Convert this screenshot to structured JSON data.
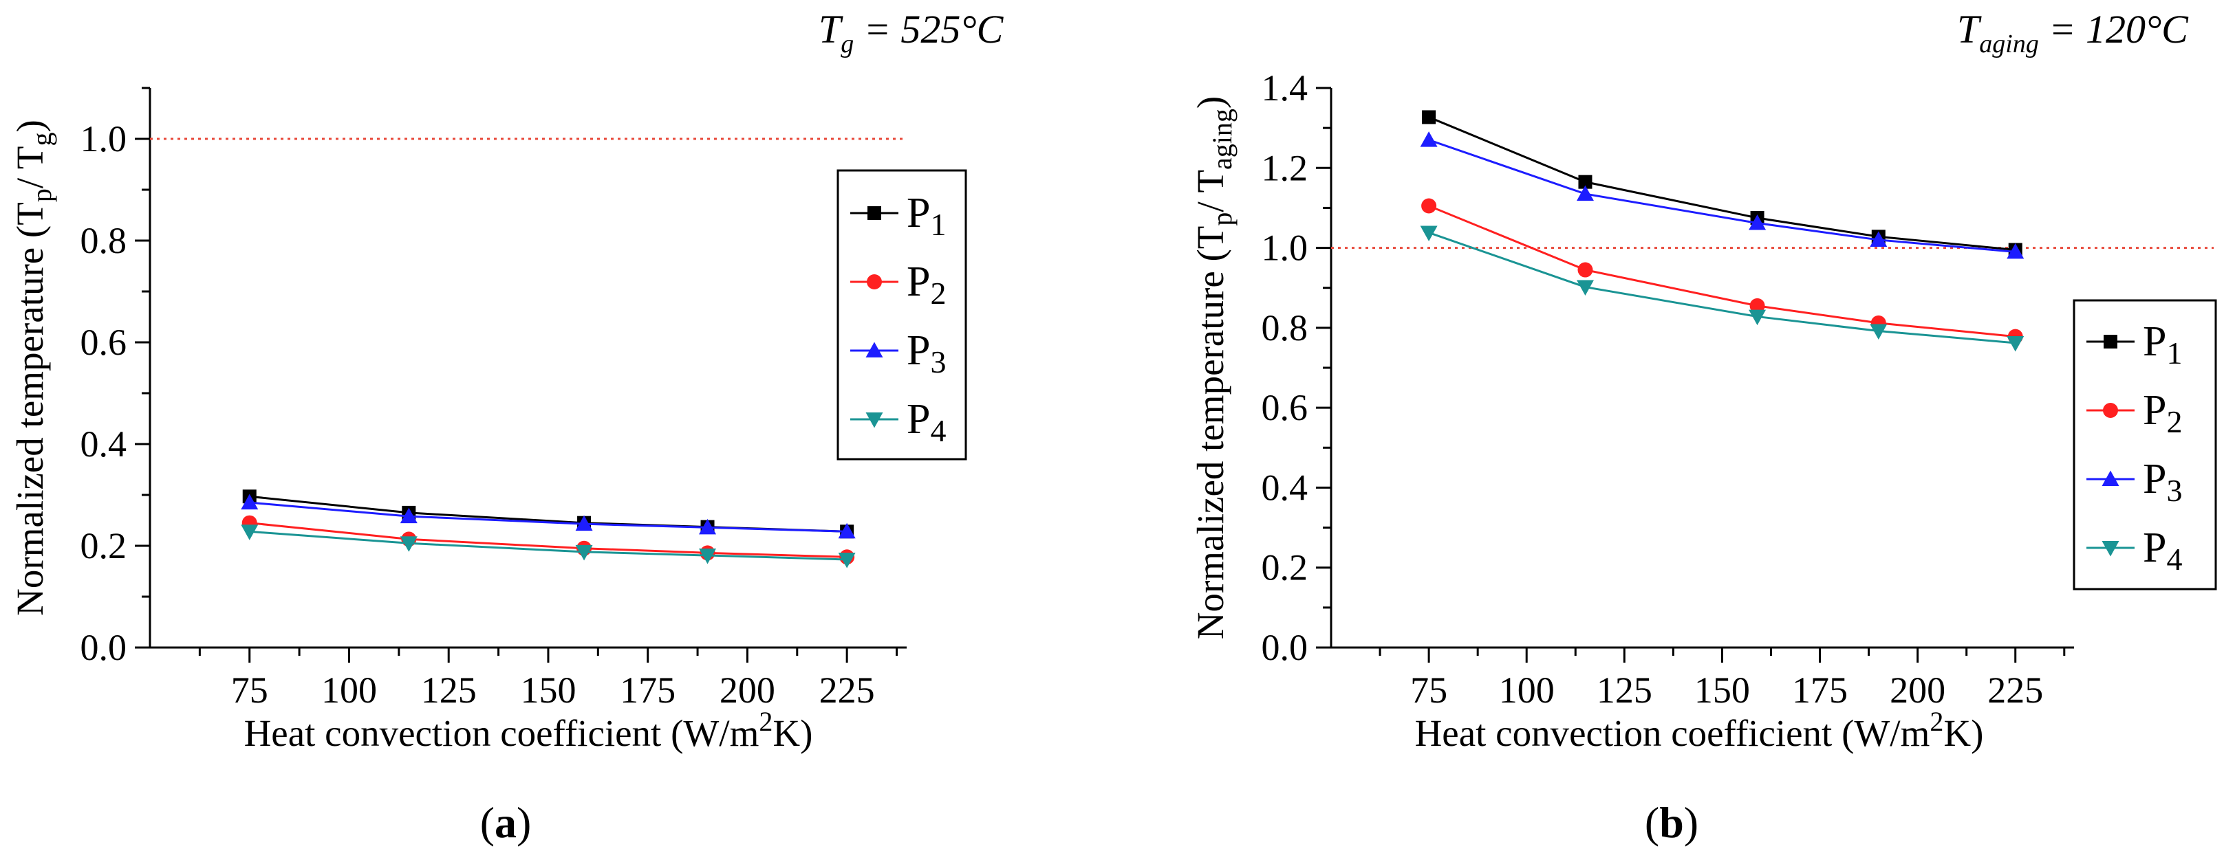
{
  "chart_data": [
    {
      "type": "line",
      "panel_label": "a",
      "title": "",
      "annotation": {
        "symbol": "T",
        "subscript": "g",
        "text": " = 525°C"
      },
      "xlabel": "Heat convection coefficient (W/m",
      "xlabel_sup": "2",
      "xlabel_end": "K)",
      "ylabel": "Normalized temperature (T",
      "ylabel_sub1": "p",
      "ylabel_mid": "/ T",
      "ylabel_sub2": "g",
      "ylabel_end": ")",
      "xlim": [
        50,
        240
      ],
      "ylim": [
        0.0,
        1.1
      ],
      "xticks": [
        75,
        100,
        125,
        150,
        175,
        200,
        225
      ],
      "yticks": [
        0.0,
        0.2,
        0.4,
        0.6,
        0.8,
        1.0
      ],
      "ytick_labels": [
        "0.0",
        "0.2",
        "0.4",
        "0.6",
        "0.8",
        "1.0"
      ],
      "reference_line": {
        "y": 1.0,
        "color": "#e8483a",
        "style": "dotted"
      },
      "x": [
        75,
        115,
        159,
        190,
        225
      ],
      "series": [
        {
          "name": "P",
          "sub": "1",
          "marker": "square",
          "color": "#000000",
          "values": [
            0.297,
            0.265,
            0.245,
            0.237,
            0.228
          ]
        },
        {
          "name": "P",
          "sub": "2",
          "marker": "circle",
          "color": "#ff2020",
          "values": [
            0.245,
            0.213,
            0.195,
            0.186,
            0.178
          ]
        },
        {
          "name": "P",
          "sub": "3",
          "marker": "triangle-up",
          "color": "#1d1dff",
          "values": [
            0.285,
            0.258,
            0.243,
            0.236,
            0.228
          ]
        },
        {
          "name": "P",
          "sub": "4",
          "marker": "triangle-down",
          "color": "#1a9494",
          "values": [
            0.228,
            0.205,
            0.188,
            0.181,
            0.173
          ]
        }
      ]
    },
    {
      "type": "line",
      "panel_label": "b",
      "title": "",
      "annotation": {
        "symbol": "T",
        "subscript": "aging",
        "text": " = 120°C"
      },
      "xlabel": "Heat convection coefficient (W/m",
      "xlabel_sup": "2",
      "xlabel_end": "K)",
      "ylabel": "Normalized temperature (T",
      "ylabel_sub1": "p",
      "ylabel_mid": "/ T",
      "ylabel_sub2": "aging",
      "ylabel_end": ")",
      "xlim": [
        50,
        240
      ],
      "ylim": [
        0.0,
        1.4
      ],
      "xticks": [
        75,
        100,
        125,
        150,
        175,
        200,
        225
      ],
      "yticks": [
        0.0,
        0.2,
        0.4,
        0.6,
        0.8,
        1.0,
        1.2,
        1.4
      ],
      "ytick_labels": [
        "0.0",
        "0.2",
        "0.4",
        "0.6",
        "0.8",
        "1.0",
        "1.2",
        "1.4"
      ],
      "reference_line": {
        "y": 1.0,
        "color": "#e8483a",
        "style": "dotted"
      },
      "x": [
        75,
        115,
        159,
        190,
        225
      ],
      "series": [
        {
          "name": "P",
          "sub": "1",
          "marker": "square",
          "color": "#000000",
          "values": [
            1.327,
            1.165,
            1.075,
            1.028,
            0.995
          ]
        },
        {
          "name": "P",
          "sub": "2",
          "marker": "circle",
          "color": "#ff2020",
          "values": [
            1.105,
            0.945,
            0.855,
            0.812,
            0.778
          ]
        },
        {
          "name": "P",
          "sub": "3",
          "marker": "triangle-up",
          "color": "#1d1dff",
          "values": [
            1.27,
            1.135,
            1.062,
            1.02,
            0.99
          ]
        },
        {
          "name": "P",
          "sub": "4",
          "marker": "triangle-down",
          "color": "#1a9494",
          "values": [
            1.038,
            0.902,
            0.828,
            0.792,
            0.762
          ]
        }
      ]
    }
  ]
}
